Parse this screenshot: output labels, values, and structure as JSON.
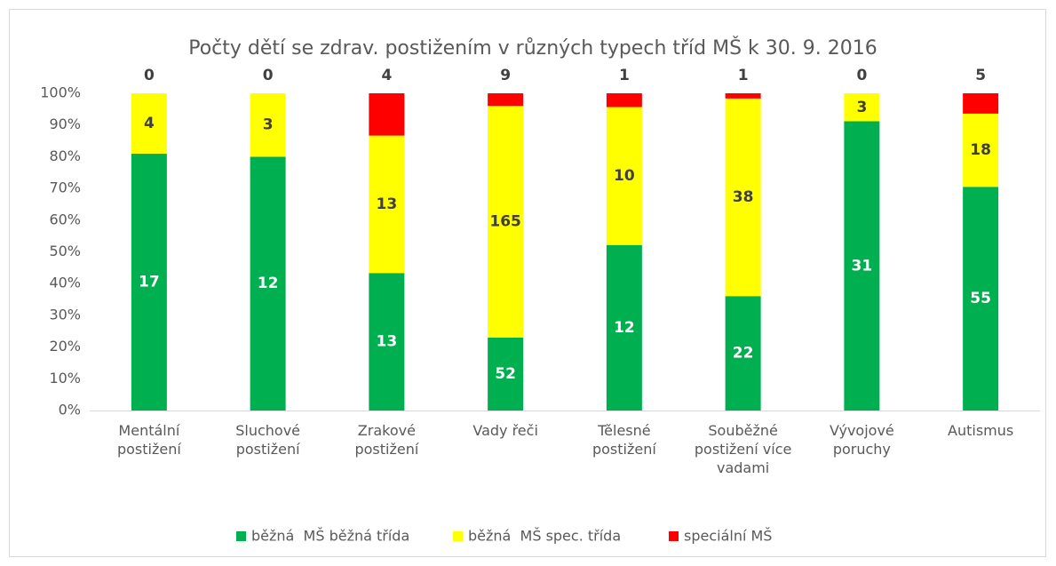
{
  "chart_data": {
    "type": "bar",
    "stacking": "percent",
    "title": "Počty dětí se zdrav. postižením v různých typech tříd MŠ k 30. 9. 2016",
    "categories": [
      "Mentální postižení",
      "Sluchové postižení",
      "Zrakové postižení",
      "Vady řeči",
      "Tělesné postižení",
      "Souběžné postižení více vadami",
      "Vývojové poruchy",
      "Autismus"
    ],
    "series": [
      {
        "name": "běžná  MŠ běžná třída",
        "color": "#00b050",
        "values": [
          17,
          12,
          13,
          52,
          12,
          22,
          31,
          55
        ]
      },
      {
        "name": "běžná  MŠ spec. třída",
        "color": "#ffff00",
        "values": [
          4,
          3,
          13,
          165,
          10,
          38,
          3,
          18
        ]
      },
      {
        "name": "speciální MŠ",
        "color": "#ff0000",
        "values": [
          0,
          0,
          4,
          9,
          1,
          1,
          0,
          5
        ]
      }
    ],
    "ylim": [
      0,
      100
    ],
    "yticks": [
      {
        "value": 0,
        "label": "0%"
      },
      {
        "value": 10,
        "label": "10%"
      },
      {
        "value": 20,
        "label": "20%"
      },
      {
        "value": 30,
        "label": "30%"
      },
      {
        "value": 40,
        "label": "40%"
      },
      {
        "value": 50,
        "label": "50%"
      },
      {
        "value": 60,
        "label": "60%"
      },
      {
        "value": 70,
        "label": "70%"
      },
      {
        "value": 80,
        "label": "80%"
      },
      {
        "value": 90,
        "label": "90%"
      },
      {
        "value": 100,
        "label": "100%"
      }
    ],
    "grid": false,
    "legend": "bottom"
  }
}
